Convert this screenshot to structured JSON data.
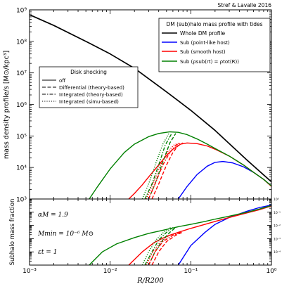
{
  "chart_data": [
    {
      "type": "line",
      "credit": "Stref & Lavalle 2016",
      "ylabel": "mass density profile/s [M⊙/kpc³]",
      "xlog": true,
      "ylog": true,
      "xlim": [
        0.001,
        1
      ],
      "ylim": [
        1000,
        1000000000
      ],
      "x_tick_labels": [
        "10⁻³",
        "10⁻²",
        "10⁻¹",
        "10⁰"
      ],
      "y_tick_labels": [
        "10³",
        "10⁴",
        "10⁵",
        "10⁶",
        "10⁷",
        "10⁸",
        "10⁹"
      ],
      "legend_colors": {
        "title": "DM (sub)halo mass profile with tides",
        "placement": "top-right",
        "entries": [
          {
            "label": "Whole DM profile",
            "color": "#000000"
          },
          {
            "label": "Sub (point-like host)",
            "color": "#0000ff"
          },
          {
            "label": "Sub (smooth host)",
            "color": "#ff0000"
          },
          {
            "label": "Sub (ρsub(rt) = ρtot(R))",
            "color": "#008000"
          }
        ]
      },
      "legend_styles": {
        "title": "Disk shocking",
        "placement": "upper-left",
        "entries": [
          {
            "label": "off",
            "dash": "solid"
          },
          {
            "label": "Differential (theory-based)",
            "dash": "dashed"
          },
          {
            "label": "Integrated (theory-based)",
            "dash": "dashdot"
          },
          {
            "label": "Integrated (simu-based)",
            "dash": "dotted"
          }
        ]
      },
      "series": [
        {
          "name": "Whole DM profile",
          "color": "#000000",
          "dash": "solid",
          "x": [
            0.001,
            0.002,
            0.005,
            0.01,
            0.02,
            0.05,
            0.1,
            0.2,
            0.5,
            1.0
          ],
          "y": [
            700000000,
            320000000,
            100000000,
            40000000,
            14000000,
            2500000,
            650000,
            150000,
            17000,
            3500
          ]
        },
        {
          "name": "Sub (point-like host)",
          "color": "#0000ff",
          "dash": "solid",
          "x": [
            0.07,
            0.09,
            0.12,
            0.16,
            0.2,
            0.25,
            0.33,
            0.45,
            0.6,
            0.8,
            1.0
          ],
          "y": [
            1000,
            2500,
            6000,
            11000,
            14500,
            15500,
            14000,
            10500,
            7000,
            4200,
            2600
          ]
        },
        {
          "name": "Sub (smooth host)",
          "color": "#ff0000",
          "dash": "solid",
          "x": [
            0.017,
            0.02,
            0.025,
            0.03,
            0.04,
            0.05,
            0.06,
            0.075,
            0.09,
            0.12,
            0.16,
            0.2,
            0.3,
            0.45,
            0.6,
            0.8,
            1.0
          ],
          "y": [
            1000,
            1500,
            2800,
            5000,
            12000,
            24000,
            38000,
            55000,
            60000,
            57000,
            48000,
            38000,
            23000,
            12000,
            7000,
            4200,
            2500
          ]
        },
        {
          "name": "Sub (ρsub(rt) = ρtot(R))",
          "color": "#008000",
          "dash": "solid",
          "x": [
            0.0055,
            0.007,
            0.01,
            0.015,
            0.02,
            0.03,
            0.04,
            0.055,
            0.07,
            0.09,
            0.12,
            0.16,
            0.2,
            0.3,
            0.45,
            0.6,
            0.8,
            1.0
          ],
          "y": [
            1000,
            2500,
            9000,
            30000,
            55000,
            95000,
            120000,
            135000,
            130000,
            110000,
            80000,
            55000,
            40000,
            23000,
            12000,
            7000,
            4200,
            2600
          ]
        },
        {
          "name": "",
          "color": "#ff0000",
          "dash": "dashed",
          "x": [
            0.033,
            0.04,
            0.05,
            0.06,
            0.07,
            0.08
          ],
          "y": [
            1000,
            3000,
            12000,
            30000,
            50000,
            60000
          ]
        },
        {
          "name": "",
          "color": "#008000",
          "dash": "dashed",
          "x": [
            0.03,
            0.036,
            0.045,
            0.055,
            0.065
          ],
          "y": [
            1000,
            3000,
            15000,
            60000,
            120000
          ]
        },
        {
          "name": "",
          "color": "#ff0000",
          "dash": "dashdot",
          "x": [
            0.03,
            0.036,
            0.045,
            0.055,
            0.065,
            0.075
          ],
          "y": [
            1000,
            3000,
            12000,
            30000,
            50000,
            60000
          ]
        },
        {
          "name": "",
          "color": "#008000",
          "dash": "dashdot",
          "x": [
            0.027,
            0.033,
            0.04,
            0.048,
            0.058
          ],
          "y": [
            1000,
            3000,
            12000,
            50000,
            120000
          ]
        },
        {
          "name": "",
          "color": "#ff0000",
          "dash": "dotted",
          "x": [
            0.028,
            0.034,
            0.042,
            0.052,
            0.062,
            0.072
          ],
          "y": [
            1000,
            3000,
            12000,
            32000,
            52000,
            60000
          ]
        },
        {
          "name": "",
          "color": "#008000",
          "dash": "dotted",
          "x": [
            0.025,
            0.03,
            0.037,
            0.045,
            0.054
          ],
          "y": [
            1000,
            3000,
            14000,
            55000,
            125000
          ]
        }
      ]
    },
    {
      "type": "line",
      "ylabel": "Subhalo mass fraction",
      "xlabel": "R/R200",
      "xlog": true,
      "ylog": true,
      "xlim": [
        0.001,
        1
      ],
      "ylim": [
        1e-05,
        1
      ],
      "x_tick_labels": [
        "10⁻³",
        "10⁻²",
        "10⁻¹",
        "10⁰"
      ],
      "y_tick_labels": [
        "10⁻⁴",
        "10⁻³",
        "10⁻²",
        "10⁻¹",
        "10⁰"
      ],
      "annotations": [
        "αM = 1.9",
        "Mmin = 10⁻⁶ M⊙",
        "εt = 1"
      ],
      "series": [
        {
          "name": "Sub (point-like host)",
          "color": "#0000ff",
          "dash": "solid",
          "x": [
            0.07,
            0.1,
            0.15,
            0.2,
            0.3,
            0.5,
            0.7,
            1.0
          ],
          "y": [
            1e-05,
            0.0003,
            0.003,
            0.012,
            0.04,
            0.12,
            0.22,
            0.35
          ]
        },
        {
          "name": "Sub (smooth host)",
          "color": "#ff0000",
          "dash": "solid",
          "x": [
            0.017,
            0.025,
            0.035,
            0.05,
            0.07,
            0.1,
            0.15,
            0.2,
            0.3,
            0.5,
            0.7,
            1.0
          ],
          "y": [
            1e-05,
            0.0001,
            0.0005,
            0.0015,
            0.003,
            0.006,
            0.012,
            0.02,
            0.04,
            0.09,
            0.15,
            0.3
          ]
        },
        {
          "name": "Sub (ρsub(rt) = ρtot(R))",
          "color": "#008000",
          "dash": "solid",
          "x": [
            0.0055,
            0.008,
            0.012,
            0.02,
            0.03,
            0.05,
            0.07,
            0.1,
            0.15,
            0.2,
            0.3,
            0.5,
            0.7,
            1.0
          ],
          "y": [
            1e-05,
            0.0001,
            0.0004,
            0.0012,
            0.0025,
            0.005,
            0.008,
            0.012,
            0.02,
            0.03,
            0.05,
            0.1,
            0.17,
            0.32
          ]
        },
        {
          "name": "",
          "color": "#ff0000",
          "dash": "dashed",
          "x": [
            0.033,
            0.04,
            0.05,
            0.065,
            0.08
          ],
          "y": [
            1e-05,
            0.0001,
            0.0006,
            0.0018,
            0.0032
          ]
        },
        {
          "name": "",
          "color": "#008000",
          "dash": "dashed",
          "x": [
            0.03,
            0.036,
            0.045,
            0.055,
            0.065
          ],
          "y": [
            1e-05,
            0.0001,
            0.0008,
            0.003,
            0.007
          ]
        },
        {
          "name": "",
          "color": "#ff0000",
          "dash": "dashdot",
          "x": [
            0.03,
            0.036,
            0.045,
            0.06,
            0.075
          ],
          "y": [
            1e-05,
            0.0001,
            0.0006,
            0.0018,
            0.003
          ]
        },
        {
          "name": "",
          "color": "#008000",
          "dash": "dashdot",
          "x": [
            0.027,
            0.033,
            0.04,
            0.05,
            0.06
          ],
          "y": [
            1e-05,
            0.0001,
            0.0008,
            0.003,
            0.007
          ]
        },
        {
          "name": "",
          "color": "#ff0000",
          "dash": "dotted",
          "x": [
            0.028,
            0.034,
            0.042,
            0.055,
            0.07
          ],
          "y": [
            1e-05,
            0.0001,
            0.0006,
            0.0018,
            0.003
          ]
        },
        {
          "name": "",
          "color": "#008000",
          "dash": "dotted",
          "x": [
            0.025,
            0.03,
            0.037,
            0.046,
            0.056
          ],
          "y": [
            1e-05,
            0.0001,
            0.0008,
            0.003,
            0.007
          ]
        }
      ]
    }
  ]
}
